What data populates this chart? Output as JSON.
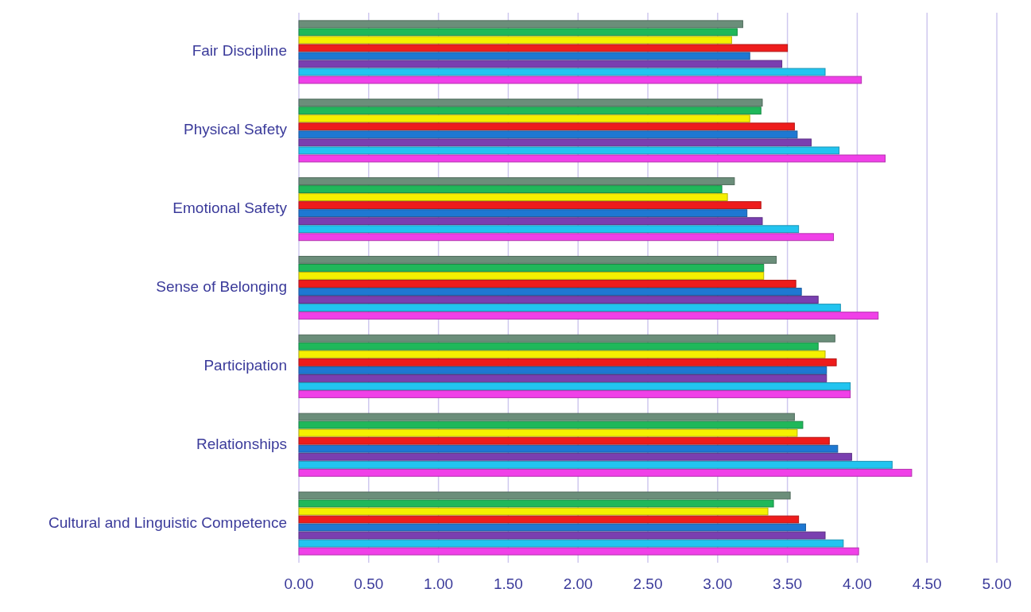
{
  "chart_data": {
    "type": "bar",
    "orientation": "horizontal",
    "categories": [
      "Fair Discipline",
      "Physical Safety",
      "Emotional Safety",
      "Sense of Belonging",
      "Participation",
      "Relationships",
      "Cultural and Linguistic Competence"
    ],
    "series": [
      {
        "color": "#6b8e7a",
        "values": [
          3.18,
          3.32,
          3.12,
          3.42,
          3.84,
          3.55,
          3.52
        ]
      },
      {
        "color": "#1fb85a",
        "values": [
          3.14,
          3.31,
          3.03,
          3.33,
          3.72,
          3.61,
          3.4
        ]
      },
      {
        "color": "#f5f000",
        "values": [
          3.1,
          3.23,
          3.07,
          3.33,
          3.77,
          3.57,
          3.36
        ]
      },
      {
        "color": "#ee1c1c",
        "values": [
          3.5,
          3.55,
          3.31,
          3.56,
          3.85,
          3.8,
          3.58
        ]
      },
      {
        "color": "#1e78d2",
        "values": [
          3.23,
          3.57,
          3.21,
          3.6,
          3.78,
          3.86,
          3.63
        ]
      },
      {
        "color": "#7a3fb0",
        "values": [
          3.46,
          3.67,
          3.32,
          3.72,
          3.78,
          3.96,
          3.77
        ]
      },
      {
        "color": "#22c4f0",
        "values": [
          3.77,
          3.87,
          3.58,
          3.88,
          3.95,
          4.25,
          3.9
        ]
      },
      {
        "color": "#f040e8",
        "values": [
          4.03,
          4.2,
          3.83,
          4.15,
          3.95,
          4.39,
          4.01
        ]
      }
    ],
    "xlim": [
      0,
      5
    ],
    "xticks": [
      {
        "value": 0,
        "label": "0.00"
      },
      {
        "value": 0.5,
        "label": "0.50"
      },
      {
        "value": 1,
        "label": "1.00"
      },
      {
        "value": 1.5,
        "label": "1.50"
      },
      {
        "value": 2,
        "label": "2.00"
      },
      {
        "value": 2.5,
        "label": "2.50"
      },
      {
        "value": 3,
        "label": "3.00"
      },
      {
        "value": 3.5,
        "label": "3.50"
      },
      {
        "value": 4,
        "label": "4.00"
      },
      {
        "value": 4.5,
        "label": "4.50"
      },
      {
        "value": 5,
        "label": "5.00"
      }
    ],
    "grid": "x"
  }
}
